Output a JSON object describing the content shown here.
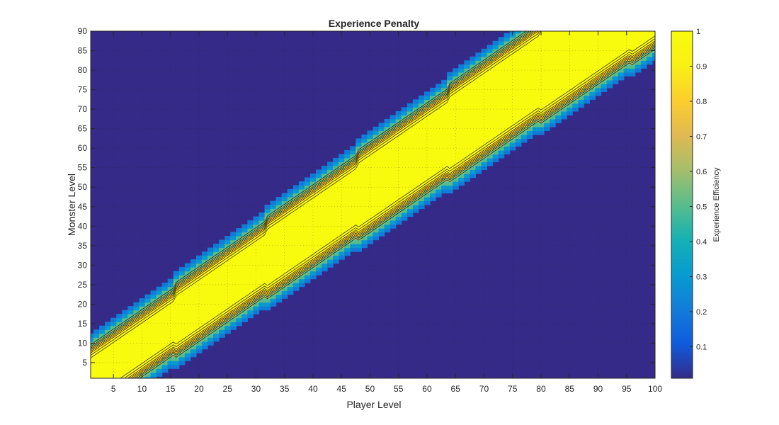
{
  "chart_data": {
    "type": "heatmap",
    "title": "Experience Penalty",
    "xlabel": "Player Level",
    "ylabel": "Monster Level",
    "colorbar_label": "Experience Efficiency",
    "xlim": [
      1,
      100
    ],
    "ylim": [
      1,
      90
    ],
    "clim": [
      0.01,
      1
    ],
    "x_ticks": [
      5,
      10,
      15,
      20,
      25,
      30,
      35,
      40,
      45,
      50,
      55,
      60,
      65,
      70,
      75,
      80,
      85,
      90,
      95,
      100
    ],
    "y_ticks": [
      5,
      10,
      15,
      20,
      25,
      30,
      35,
      40,
      45,
      50,
      55,
      60,
      65,
      70,
      75,
      80,
      85,
      90
    ],
    "colorbar_ticks": [
      0.1,
      0.2,
      0.3,
      0.4,
      0.5,
      0.6,
      0.7,
      0.8,
      0.9,
      1
    ],
    "colormap": "parula",
    "grid": true,
    "contour_lines": true,
    "description_of_values": {
      "diagonal_band_efficiency": 1,
      "far_from_diagonal_efficiency": 0.01,
      "penalty_onset_level_difference_base": 5,
      "penalty_steps_at_player_levels": [
        16,
        32,
        48,
        64,
        80
      ]
    }
  },
  "colors": {
    "axis": "#262626",
    "grid": "#1f1f1f",
    "contour": "#000000"
  }
}
